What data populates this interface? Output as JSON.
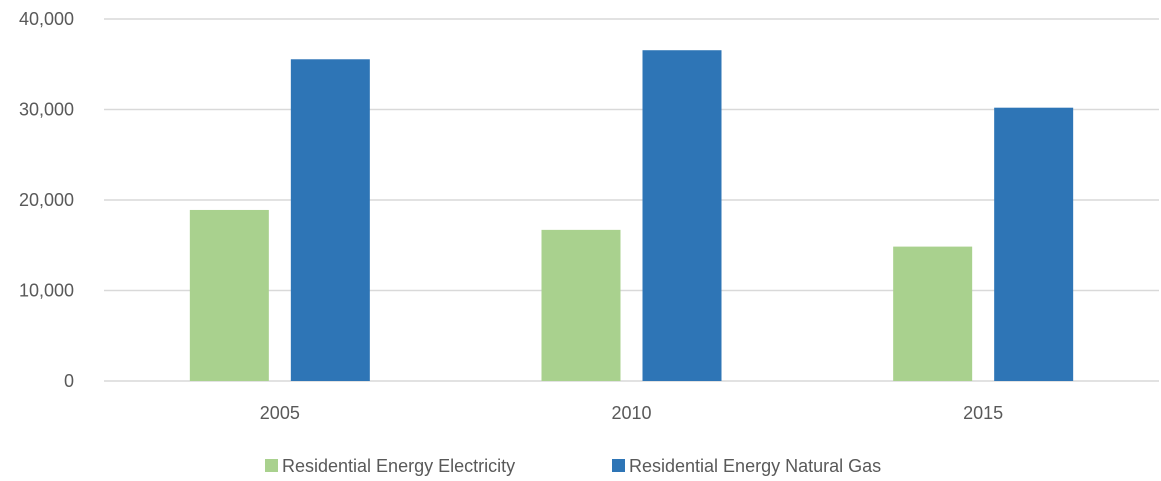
{
  "chart_data": {
    "type": "bar",
    "categories": [
      "2005",
      "2010",
      "2015"
    ],
    "series": [
      {
        "name": "Residential Energy Electricity",
        "values": [
          18900,
          16700,
          14850
        ],
        "color": "#a9d18e"
      },
      {
        "name": "Residential Energy Natural Gas",
        "values": [
          35550,
          36550,
          30200
        ],
        "color": "#2e75b6"
      }
    ],
    "y_ticks": [
      "0",
      "10,000",
      "20,000",
      "30,000",
      "40,000"
    ],
    "ylim": [
      0,
      40000
    ],
    "grid": true,
    "legend": "bottom-center",
    "colors": {
      "gridline": "#d9d9d9",
      "axis_text": "#595959"
    }
  }
}
